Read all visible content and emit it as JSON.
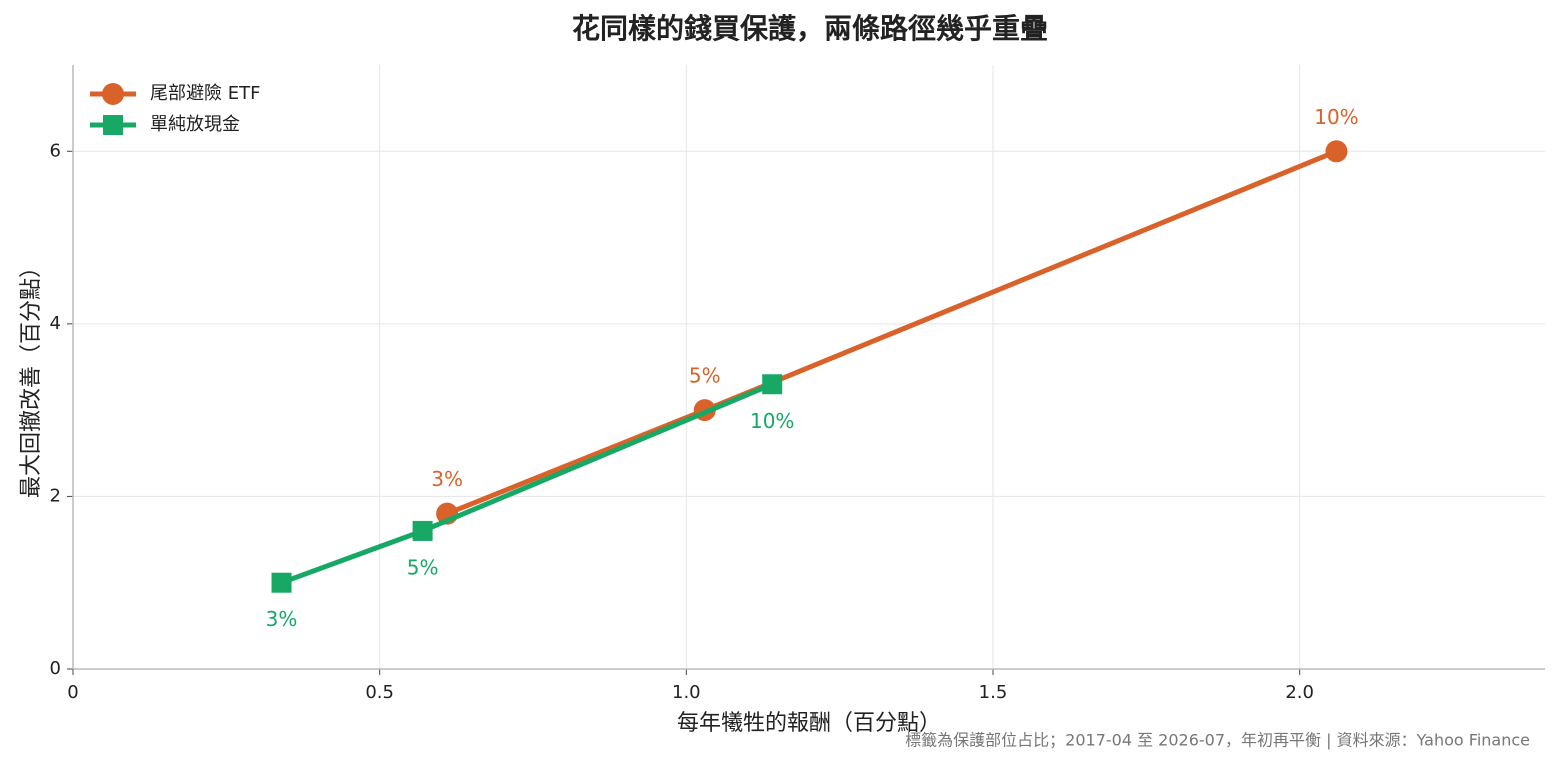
{
  "chart_data": {
    "type": "line",
    "title": "花同樣的錢買保護，兩條路徑幾乎重疊",
    "x_label": "每年犧牲的報酬（百分點）",
    "y_label": "最大回撤改善（百分點）",
    "footnote": "標籤為保護部位占比；2017-04 至 2026-07，年初再平衡 | 資料來源：Yahoo Finance",
    "series": [
      {
        "name": "尾部避險 ETF",
        "color": "#d9622b",
        "marker": "circle",
        "x": [
          0.61,
          1.03,
          2.06
        ],
        "values": [
          1.8,
          3.0,
          6.0
        ],
        "point_labels": [
          "3%",
          "5%",
          "10%"
        ]
      },
      {
        "name": "單純放現金",
        "color": "#17a866",
        "marker": "square",
        "x": [
          0.34,
          0.57,
          1.14
        ],
        "values": [
          1.0,
          1.6,
          3.3
        ],
        "point_labels": [
          "3%",
          "5%",
          "10%"
        ]
      }
    ],
    "xlim": [
      0,
      2.4
    ],
    "ylim": [
      0,
      7
    ],
    "xticks": [
      0,
      0.5,
      {
        "value": 1,
        "label": "1.0"
      },
      1.5,
      {
        "value": 2,
        "label": "2.0"
      }
    ],
    "yticks": [
      0,
      2,
      4,
      6
    ],
    "grid": true,
    "legend": "upper-left"
  }
}
